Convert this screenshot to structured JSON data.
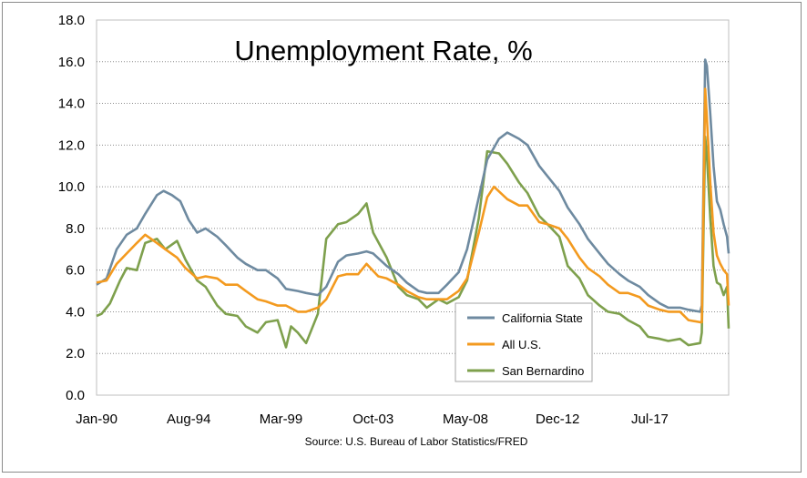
{
  "chart_data": {
    "type": "line",
    "title": "Unemployment Rate, %",
    "source": "Source: U.S. Bureau of Labor Statistics/FRED",
    "xlabel": "",
    "ylabel": "",
    "x_range": [
      "1990-01",
      "2021-06"
    ],
    "ylim": [
      0,
      18
    ],
    "y_ticks": [
      "0.0",
      "2.0",
      "4.0",
      "6.0",
      "8.0",
      "10.0",
      "12.0",
      "14.0",
      "16.0",
      "18.0"
    ],
    "x_tick_labels": [
      {
        "label": "Jan-90",
        "date": "1990-01"
      },
      {
        "label": "Aug-94",
        "date": "1994-08"
      },
      {
        "label": "Mar-99",
        "date": "1999-03"
      },
      {
        "label": "Oct-03",
        "date": "2003-10"
      },
      {
        "label": "May-08",
        "date": "2008-05"
      },
      {
        "label": "Dec-12",
        "date": "2012-12"
      },
      {
        "label": "Jul-17",
        "date": "2017-07"
      }
    ],
    "grid": "horizontal",
    "legend_position": "bottom-center",
    "series": [
      {
        "name": "California State",
        "color": "#6e8aa0",
        "points": [
          [
            "1990-01",
            5.3
          ],
          [
            "1990-07",
            5.6
          ],
          [
            "1991-01",
            7.0
          ],
          [
            "1991-07",
            7.7
          ],
          [
            "1992-01",
            8.0
          ],
          [
            "1992-06",
            8.7
          ],
          [
            "1993-01",
            9.6
          ],
          [
            "1993-05",
            9.8
          ],
          [
            "1993-10",
            9.6
          ],
          [
            "1994-03",
            9.3
          ],
          [
            "1994-08",
            8.4
          ],
          [
            "1995-01",
            7.8
          ],
          [
            "1995-06",
            8.0
          ],
          [
            "1996-01",
            7.6
          ],
          [
            "1996-06",
            7.2
          ],
          [
            "1997-01",
            6.6
          ],
          [
            "1997-06",
            6.3
          ],
          [
            "1998-01",
            6.0
          ],
          [
            "1998-06",
            6.0
          ],
          [
            "1999-01",
            5.6
          ],
          [
            "1999-06",
            5.1
          ],
          [
            "2000-01",
            5.0
          ],
          [
            "2000-06",
            4.9
          ],
          [
            "2001-01",
            4.8
          ],
          [
            "2001-06",
            5.2
          ],
          [
            "2002-01",
            6.4
          ],
          [
            "2002-06",
            6.7
          ],
          [
            "2003-01",
            6.8
          ],
          [
            "2003-06",
            6.9
          ],
          [
            "2003-10",
            6.8
          ],
          [
            "2004-06",
            6.2
          ],
          [
            "2005-01",
            5.8
          ],
          [
            "2005-06",
            5.4
          ],
          [
            "2006-01",
            5.0
          ],
          [
            "2006-06",
            4.9
          ],
          [
            "2007-01",
            4.9
          ],
          [
            "2007-06",
            5.3
          ],
          [
            "2008-01",
            5.9
          ],
          [
            "2008-06",
            7.0
          ],
          [
            "2009-01",
            9.5
          ],
          [
            "2009-06",
            11.3
          ],
          [
            "2010-01",
            12.3
          ],
          [
            "2010-06",
            12.6
          ],
          [
            "2011-01",
            12.3
          ],
          [
            "2011-06",
            12.0
          ],
          [
            "2012-01",
            11.0
          ],
          [
            "2012-06",
            10.5
          ],
          [
            "2013-01",
            9.8
          ],
          [
            "2013-06",
            9.0
          ],
          [
            "2014-01",
            8.2
          ],
          [
            "2014-06",
            7.5
          ],
          [
            "2015-01",
            6.8
          ],
          [
            "2015-06",
            6.3
          ],
          [
            "2016-01",
            5.8
          ],
          [
            "2016-06",
            5.5
          ],
          [
            "2017-01",
            5.2
          ],
          [
            "2017-06",
            4.8
          ],
          [
            "2018-01",
            4.4
          ],
          [
            "2018-06",
            4.2
          ],
          [
            "2019-01",
            4.2
          ],
          [
            "2019-06",
            4.1
          ],
          [
            "2020-01",
            4.0
          ],
          [
            "2020-02",
            4.3
          ],
          [
            "2020-04",
            16.1
          ],
          [
            "2020-05",
            15.8
          ],
          [
            "2020-07",
            13.5
          ],
          [
            "2020-09",
            11.0
          ],
          [
            "2020-11",
            9.3
          ],
          [
            "2021-01",
            8.9
          ],
          [
            "2021-03",
            8.2
          ],
          [
            "2021-05",
            7.6
          ],
          [
            "2021-06",
            6.8
          ]
        ]
      },
      {
        "name": "All U.S.",
        "color": "#f39a1f",
        "points": [
          [
            "1990-01",
            5.4
          ],
          [
            "1990-07",
            5.5
          ],
          [
            "1991-01",
            6.3
          ],
          [
            "1991-07",
            6.8
          ],
          [
            "1992-01",
            7.3
          ],
          [
            "1992-06",
            7.7
          ],
          [
            "1993-01",
            7.3
          ],
          [
            "1993-06",
            7.0
          ],
          [
            "1994-01",
            6.6
          ],
          [
            "1994-06",
            6.1
          ],
          [
            "1995-01",
            5.6
          ],
          [
            "1995-06",
            5.7
          ],
          [
            "1996-01",
            5.6
          ],
          [
            "1996-06",
            5.3
          ],
          [
            "1997-01",
            5.3
          ],
          [
            "1997-06",
            5.0
          ],
          [
            "1998-01",
            4.6
          ],
          [
            "1998-06",
            4.5
          ],
          [
            "1999-01",
            4.3
          ],
          [
            "1999-06",
            4.3
          ],
          [
            "2000-01",
            4.0
          ],
          [
            "2000-06",
            4.0
          ],
          [
            "2001-01",
            4.2
          ],
          [
            "2001-06",
            4.6
          ],
          [
            "2002-01",
            5.7
          ],
          [
            "2002-06",
            5.8
          ],
          [
            "2003-01",
            5.8
          ],
          [
            "2003-06",
            6.3
          ],
          [
            "2004-01",
            5.7
          ],
          [
            "2004-06",
            5.6
          ],
          [
            "2005-01",
            5.3
          ],
          [
            "2005-06",
            5.0
          ],
          [
            "2006-01",
            4.7
          ],
          [
            "2006-06",
            4.6
          ],
          [
            "2007-01",
            4.6
          ],
          [
            "2007-06",
            4.6
          ],
          [
            "2008-01",
            5.0
          ],
          [
            "2008-06",
            5.6
          ],
          [
            "2009-01",
            7.8
          ],
          [
            "2009-06",
            9.5
          ],
          [
            "2009-10",
            10.0
          ],
          [
            "2010-06",
            9.4
          ],
          [
            "2011-01",
            9.1
          ],
          [
            "2011-06",
            9.1
          ],
          [
            "2012-01",
            8.3
          ],
          [
            "2012-06",
            8.2
          ],
          [
            "2013-01",
            8.0
          ],
          [
            "2013-06",
            7.5
          ],
          [
            "2014-01",
            6.6
          ],
          [
            "2014-06",
            6.1
          ],
          [
            "2015-01",
            5.7
          ],
          [
            "2015-06",
            5.3
          ],
          [
            "2016-01",
            4.9
          ],
          [
            "2016-06",
            4.9
          ],
          [
            "2017-01",
            4.7
          ],
          [
            "2017-06",
            4.3
          ],
          [
            "2018-01",
            4.1
          ],
          [
            "2018-06",
            4.0
          ],
          [
            "2019-01",
            4.0
          ],
          [
            "2019-06",
            3.6
          ],
          [
            "2020-01",
            3.5
          ],
          [
            "2020-02",
            3.5
          ],
          [
            "2020-04",
            14.7
          ],
          [
            "2020-05",
            13.3
          ],
          [
            "2020-07",
            10.2
          ],
          [
            "2020-09",
            7.8
          ],
          [
            "2020-11",
            6.7
          ],
          [
            "2021-01",
            6.3
          ],
          [
            "2021-03",
            6.0
          ],
          [
            "2021-05",
            5.8
          ],
          [
            "2021-06",
            4.3
          ]
        ]
      },
      {
        "name": "San Bernardino",
        "color": "#7ea04d",
        "points": [
          [
            "1990-01",
            3.8
          ],
          [
            "1990-04",
            3.9
          ],
          [
            "1990-09",
            4.4
          ],
          [
            "1991-03",
            5.5
          ],
          [
            "1991-07",
            6.1
          ],
          [
            "1992-01",
            6.0
          ],
          [
            "1992-06",
            7.3
          ],
          [
            "1993-01",
            7.5
          ],
          [
            "1993-06",
            7.0
          ],
          [
            "1994-01",
            7.4
          ],
          [
            "1994-06",
            6.5
          ],
          [
            "1995-01",
            5.5
          ],
          [
            "1995-06",
            5.2
          ],
          [
            "1996-01",
            4.3
          ],
          [
            "1996-06",
            3.9
          ],
          [
            "1997-01",
            3.8
          ],
          [
            "1997-06",
            3.3
          ],
          [
            "1998-01",
            3.0
          ],
          [
            "1998-06",
            3.5
          ],
          [
            "1999-01",
            3.6
          ],
          [
            "1999-06",
            2.3
          ],
          [
            "1999-09",
            3.3
          ],
          [
            "2000-01",
            3.0
          ],
          [
            "2000-06",
            2.5
          ],
          [
            "2001-01",
            3.9
          ],
          [
            "2001-06",
            7.5
          ],
          [
            "2002-01",
            8.2
          ],
          [
            "2002-06",
            8.3
          ],
          [
            "2003-01",
            8.7
          ],
          [
            "2003-06",
            9.2
          ],
          [
            "2003-10",
            7.8
          ],
          [
            "2004-06",
            6.6
          ],
          [
            "2005-01",
            5.2
          ],
          [
            "2005-06",
            4.8
          ],
          [
            "2006-01",
            4.6
          ],
          [
            "2006-06",
            4.2
          ],
          [
            "2007-01",
            4.6
          ],
          [
            "2007-06",
            4.4
          ],
          [
            "2008-01",
            4.7
          ],
          [
            "2008-06",
            5.5
          ],
          [
            "2009-01",
            8.5
          ],
          [
            "2009-06",
            11.7
          ],
          [
            "2010-01",
            11.6
          ],
          [
            "2010-06",
            11.1
          ],
          [
            "2011-01",
            10.2
          ],
          [
            "2011-06",
            9.7
          ],
          [
            "2012-01",
            8.6
          ],
          [
            "2012-06",
            8.2
          ],
          [
            "2013-01",
            7.6
          ],
          [
            "2013-06",
            6.2
          ],
          [
            "2014-01",
            5.6
          ],
          [
            "2014-06",
            4.8
          ],
          [
            "2015-01",
            4.3
          ],
          [
            "2015-06",
            4.0
          ],
          [
            "2016-01",
            3.9
          ],
          [
            "2016-06",
            3.6
          ],
          [
            "2017-01",
            3.3
          ],
          [
            "2017-06",
            2.8
          ],
          [
            "2018-01",
            2.7
          ],
          [
            "2018-06",
            2.6
          ],
          [
            "2019-01",
            2.7
          ],
          [
            "2019-06",
            2.4
          ],
          [
            "2020-01",
            2.5
          ],
          [
            "2020-02",
            3.0
          ],
          [
            "2020-04",
            12.4
          ],
          [
            "2020-05",
            11.5
          ],
          [
            "2020-07",
            8.5
          ],
          [
            "2020-09",
            6.2
          ],
          [
            "2020-11",
            5.4
          ],
          [
            "2021-01",
            5.3
          ],
          [
            "2021-03",
            4.8
          ],
          [
            "2021-05",
            5.2
          ],
          [
            "2021-06",
            3.2
          ]
        ]
      }
    ]
  }
}
